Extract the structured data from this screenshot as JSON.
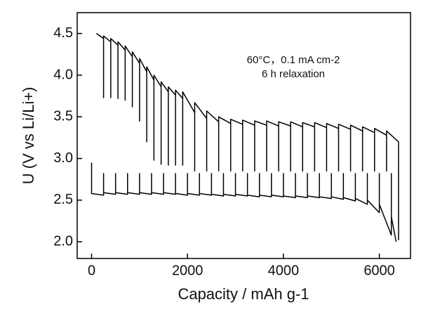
{
  "chart_data": {
    "type": "line",
    "xlabel": "Capacity / mAh g-1",
    "ylabel": "U (V vs Li/Li+)",
    "annotations": [
      "60°C，0.1 mA cm-2",
      "6 h relaxation"
    ],
    "xlim": [
      -300,
      6650
    ],
    "ylim": [
      1.8,
      4.75
    ],
    "xticks": [
      0,
      2000,
      4000,
      6000
    ],
    "yticks": [
      {
        "value": 2,
        "label": "2.0"
      },
      2.5,
      {
        "value": 3,
        "label": "3.0"
      },
      3.5,
      {
        "value": 4,
        "label": "4.0"
      },
      4.5
    ],
    "series": [
      {
        "color": "#000000",
        "x": [
          0,
          0,
          250,
          250,
          250,
          500,
          500,
          500,
          750,
          750,
          750,
          1000,
          1000,
          1000,
          1250,
          1250,
          1250,
          1500,
          1500,
          1500,
          1750,
          1750,
          1750,
          2000,
          2000,
          2000,
          2250,
          2250,
          2250,
          2500,
          2500,
          2500,
          2750,
          2750,
          2750,
          3000,
          3000,
          3000,
          3250,
          3250,
          3250,
          3500,
          3500,
          3500,
          3750,
          3750,
          3750,
          4000,
          4000,
          4000,
          4250,
          4250,
          4250,
          4500,
          4500,
          4500,
          4750,
          4750,
          4750,
          5000,
          5000,
          5000,
          5250,
          5250,
          5250,
          5500,
          5500,
          5500,
          5750,
          5750,
          5750,
          6000,
          6000,
          6000,
          6250,
          6250,
          6250,
          6350
        ],
        "values": [
          2.95,
          2.58,
          2.56,
          2.82,
          2.59,
          2.57,
          2.82,
          2.59,
          2.57,
          2.82,
          2.59,
          2.57,
          2.82,
          2.59,
          2.57,
          2.82,
          2.59,
          2.57,
          2.82,
          2.59,
          2.57,
          2.82,
          2.58,
          2.56,
          2.82,
          2.58,
          2.56,
          2.82,
          2.58,
          2.56,
          2.82,
          2.57,
          2.55,
          2.82,
          2.57,
          2.55,
          2.82,
          2.57,
          2.55,
          2.82,
          2.56,
          2.54,
          2.82,
          2.56,
          2.54,
          2.82,
          2.56,
          2.54,
          2.82,
          2.55,
          2.53,
          2.82,
          2.55,
          2.53,
          2.82,
          2.55,
          2.53,
          2.82,
          2.54,
          2.52,
          2.82,
          2.54,
          2.51,
          2.82,
          2.53,
          2.49,
          2.82,
          2.52,
          2.45,
          2.82,
          2.5,
          2.35,
          2.82,
          2.45,
          2.08,
          2.82,
          2.3,
          2.0
        ]
      },
      {
        "color": "#000000",
        "x": [
          6400,
          6400,
          6150,
          6150,
          6150,
          5900,
          5900,
          5900,
          5650,
          5650,
          5650,
          5400,
          5400,
          5400,
          5150,
          5150,
          5150,
          4900,
          4900,
          4900,
          4650,
          4650,
          4650,
          4400,
          4400,
          4400,
          4150,
          4150,
          4150,
          3900,
          3900,
          3900,
          3650,
          3650,
          3650,
          3400,
          3400,
          3400,
          3150,
          3150,
          3150,
          2900,
          2900,
          2900,
          2650,
          2650,
          2650,
          2400,
          2400,
          2400,
          2150,
          2150,
          2150,
          1900,
          1900,
          1900,
          1750,
          1750,
          1750,
          1600,
          1600,
          1600,
          1450,
          1450,
          1450,
          1300,
          1300,
          1300,
          1150,
          1150,
          1150,
          1000,
          1000,
          1000,
          850,
          850,
          850,
          700,
          700,
          700,
          550,
          550,
          550,
          400,
          400,
          400,
          250,
          250,
          250,
          100
        ],
        "values": [
          2.02,
          3.2,
          3.33,
          2.85,
          3.28,
          3.36,
          2.85,
          3.31,
          3.38,
          2.85,
          3.33,
          3.4,
          2.85,
          3.35,
          3.41,
          2.85,
          3.36,
          3.42,
          2.85,
          3.37,
          3.43,
          2.85,
          3.38,
          3.43,
          2.85,
          3.38,
          3.44,
          2.85,
          3.39,
          3.44,
          2.85,
          3.39,
          3.45,
          2.85,
          3.4,
          3.45,
          2.85,
          3.4,
          3.46,
          2.85,
          3.41,
          3.47,
          2.85,
          3.42,
          3.5,
          2.85,
          3.44,
          3.57,
          2.85,
          3.48,
          3.67,
          2.85,
          3.55,
          3.8,
          2.92,
          3.72,
          3.82,
          2.92,
          3.76,
          3.86,
          2.92,
          3.8,
          3.92,
          2.93,
          3.86,
          4.0,
          2.98,
          3.94,
          4.1,
          3.2,
          4.04,
          4.2,
          3.45,
          4.14,
          4.28,
          3.62,
          4.22,
          4.35,
          3.7,
          4.3,
          4.4,
          3.72,
          4.36,
          4.44,
          3.73,
          4.4,
          4.47,
          3.73,
          4.44,
          4.5
        ]
      }
    ]
  }
}
